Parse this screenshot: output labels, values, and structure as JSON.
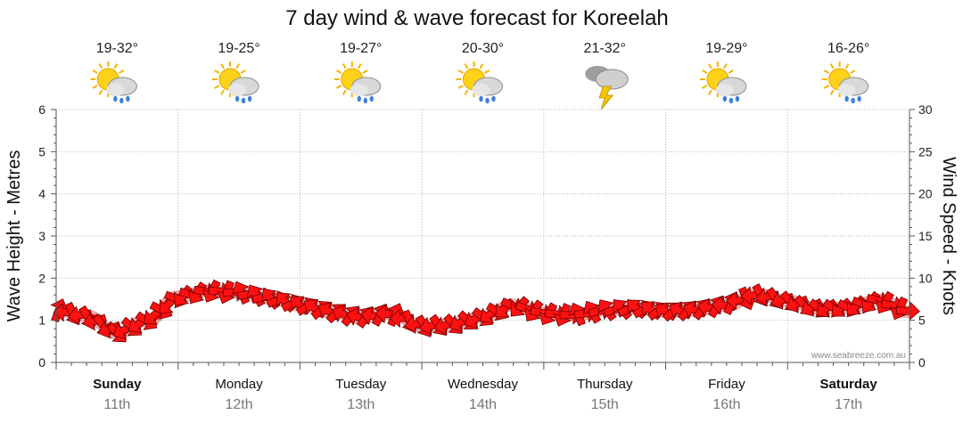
{
  "chart_data": {
    "type": "line",
    "title": "7 day wind & wave forecast for Koreelah",
    "ylabel_left": "Wave Height - Metres",
    "ylabel_right": "Wind Speed - Knots",
    "ylim_left": [
      0,
      6
    ],
    "ylim_right": [
      0,
      30
    ],
    "left_ticks": [
      "0",
      "1",
      "2",
      "3",
      "4",
      "5",
      "6"
    ],
    "right_ticks": [
      "0",
      "5",
      "10",
      "15",
      "20",
      "25",
      "30"
    ],
    "grid": true,
    "days": [
      {
        "name": "Sunday",
        "date": "11th",
        "bold": true,
        "temp": "19-32°",
        "icon": "sun-cloud-rain-icon"
      },
      {
        "name": "Monday",
        "date": "12th",
        "bold": false,
        "temp": "19-25°",
        "icon": "sun-cloud-rain-icon"
      },
      {
        "name": "Tuesday",
        "date": "13th",
        "bold": false,
        "temp": "19-27°",
        "icon": "sun-cloud-rain-icon"
      },
      {
        "name": "Wednesday",
        "date": "14th",
        "bold": false,
        "temp": "20-30°",
        "icon": "sun-cloud-rain-icon"
      },
      {
        "name": "Thursday",
        "date": "15th",
        "bold": false,
        "temp": "21-32°",
        "icon": "storm-cloud-icon"
      },
      {
        "name": "Friday",
        "date": "16th",
        "bold": false,
        "temp": "19-29°",
        "icon": "sun-cloud-rain-icon"
      },
      {
        "name": "Saturday",
        "date": "17th",
        "bold": true,
        "temp": "16-26°",
        "icon": "sun-cloud-rain-icon"
      }
    ],
    "series": [
      {
        "name": "Wind Speed (knots)",
        "color": "#ff0000",
        "x_days": [
          0,
          0.25,
          0.5,
          0.75,
          1,
          1.25,
          1.5,
          1.75,
          2,
          2.25,
          2.5,
          2.75,
          3,
          3.25,
          3.5,
          3.75,
          4,
          4.25,
          4.5,
          4.75,
          5,
          5.25,
          5.5,
          5.75,
          6,
          6.25,
          6.5,
          6.75,
          7
        ],
        "values": [
          6.2,
          5.5,
          3.5,
          5,
          7.8,
          8.5,
          8.3,
          7.6,
          6.8,
          6,
          5.3,
          5.8,
          4.3,
          4.5,
          5.4,
          6.8,
          5.8,
          5.6,
          6.2,
          6.4,
          6,
          6.2,
          6.8,
          8.1,
          7.3,
          6.4,
          6.5,
          7.4,
          6
        ]
      }
    ]
  },
  "credit": "www.seabreeze.com.au"
}
